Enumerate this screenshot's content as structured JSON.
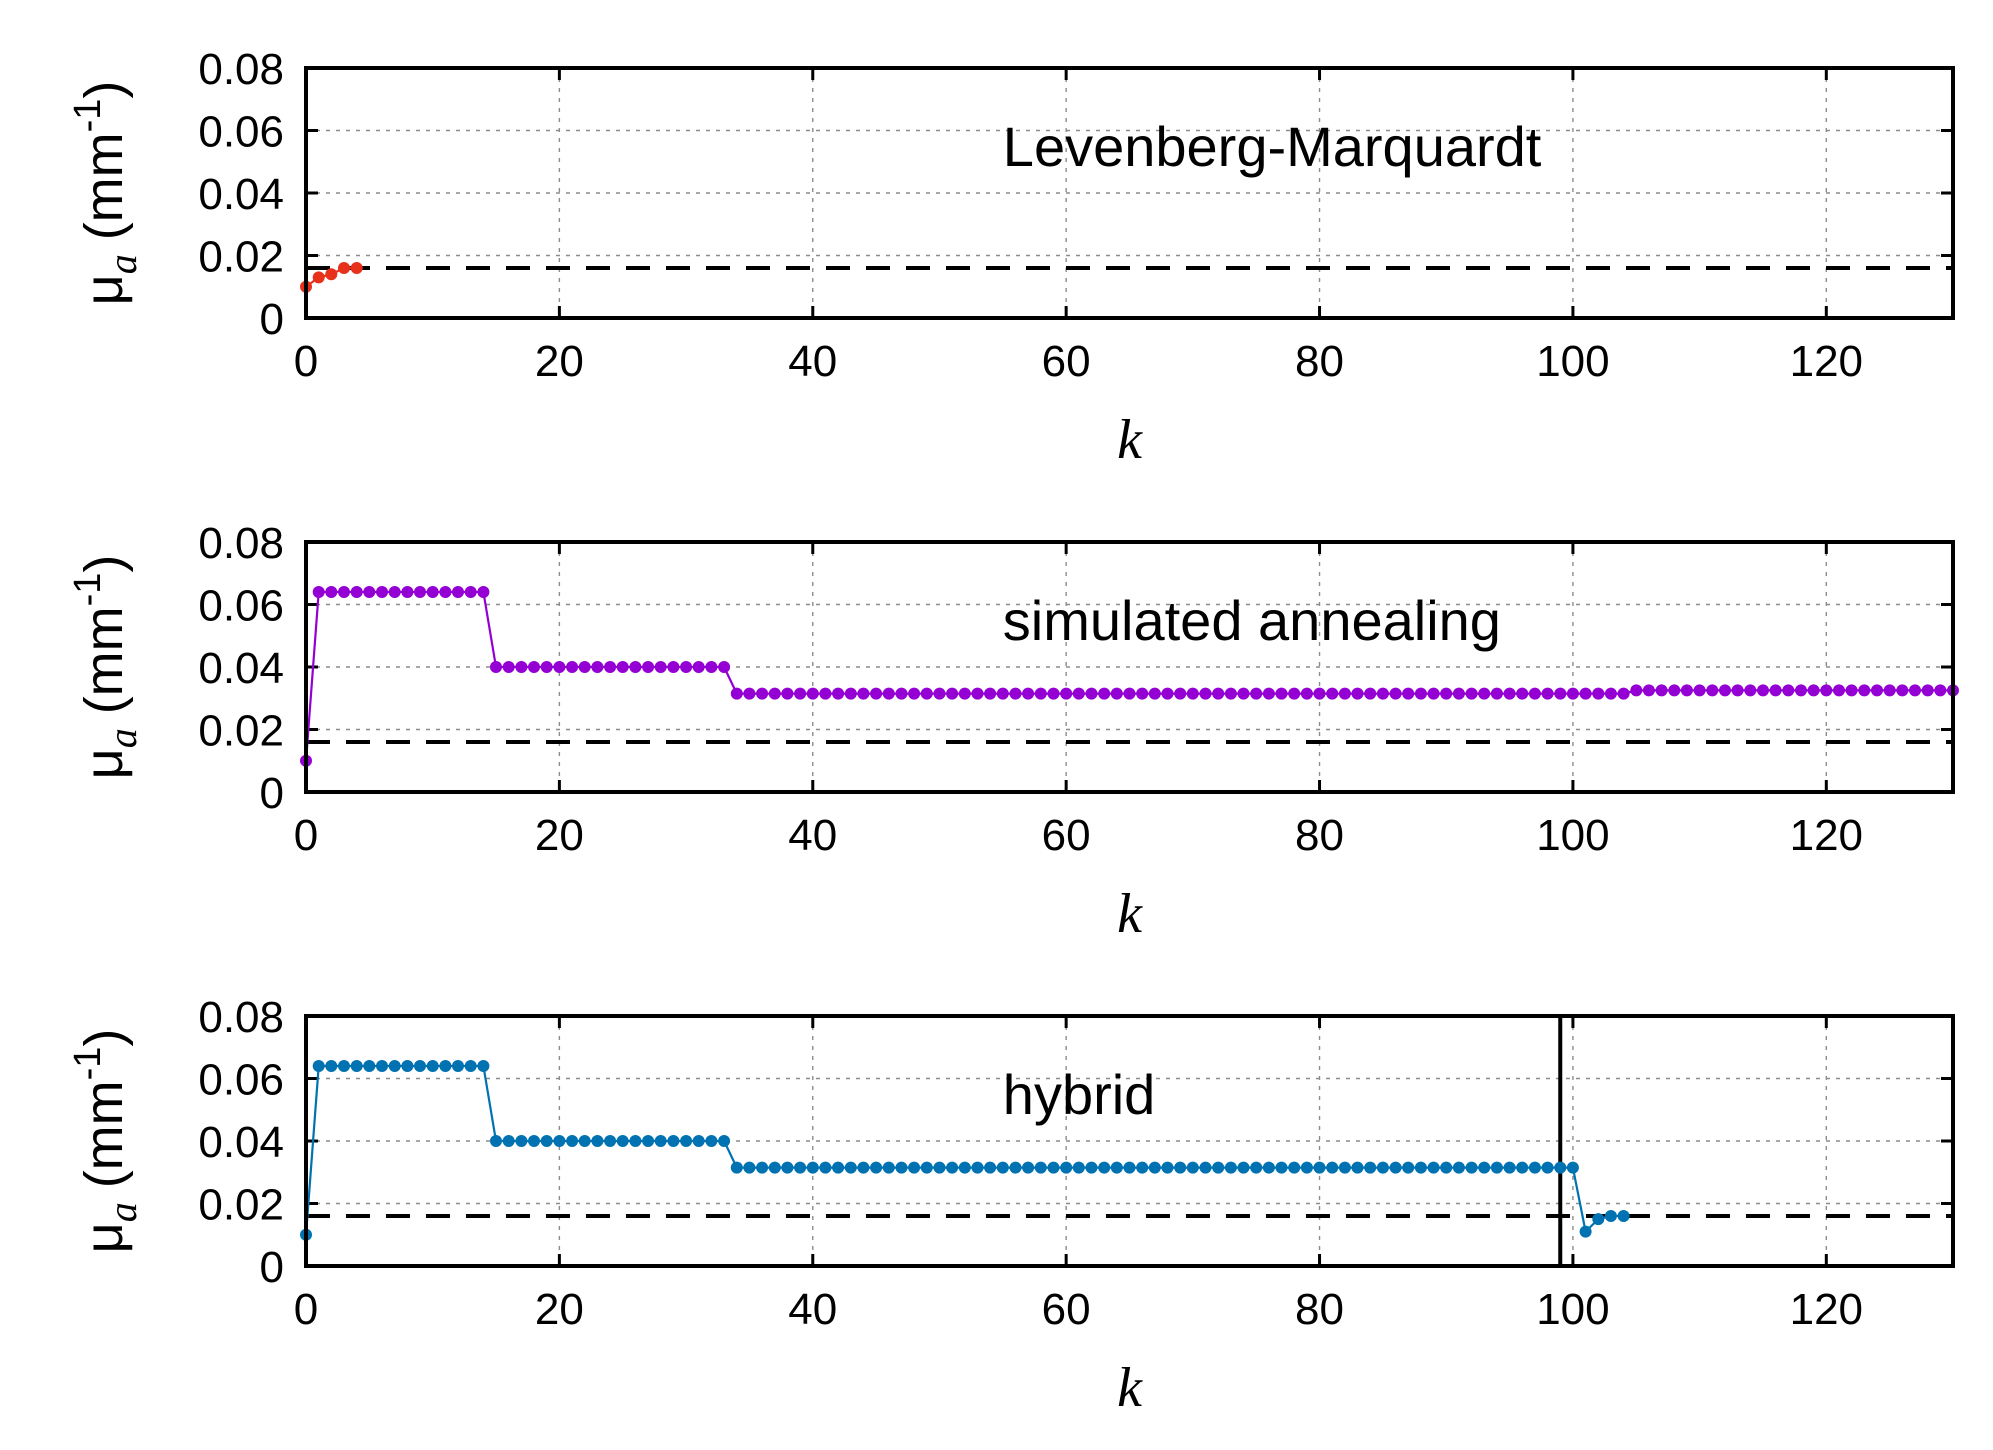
{
  "chart_data": [
    {
      "type": "line",
      "title": "Levenberg-Marquardt",
      "xlabel": "k",
      "ylabel": "μ",
      "ylabel_subscript": "a",
      "ylabel_units_open": "(mm",
      "ylabel_units_exp": "-1",
      "ylabel_units_close": ")",
      "xlim": [
        0,
        130
      ],
      "ylim": [
        0,
        0.08
      ],
      "xticks": [
        0,
        20,
        40,
        60,
        80,
        100,
        120
      ],
      "yticks": [
        0,
        0.02,
        0.04,
        0.06,
        0.08
      ],
      "xtick_labels": [
        "0",
        "20",
        "40",
        "60",
        "80",
        "100",
        "120"
      ],
      "ytick_labels": [
        "0",
        "0.02",
        "0.04",
        "0.06",
        "0.08"
      ],
      "grid": true,
      "reference_y": 0.016,
      "color": "#e8311a",
      "series": [
        {
          "name": "Levenberg-Marquardt",
          "x": [
            0,
            1,
            2,
            3,
            4
          ],
          "y": [
            0.01,
            0.013,
            0.014,
            0.016,
            0.016
          ]
        }
      ]
    },
    {
      "type": "line",
      "title": "simulated annealing",
      "xlabel": "k",
      "ylabel": "μ",
      "ylabel_subscript": "a",
      "ylabel_units_open": "(mm",
      "ylabel_units_exp": "-1",
      "ylabel_units_close": ")",
      "xlim": [
        0,
        130
      ],
      "ylim": [
        0,
        0.08
      ],
      "xticks": [
        0,
        20,
        40,
        60,
        80,
        100,
        120
      ],
      "yticks": [
        0,
        0.02,
        0.04,
        0.06,
        0.08
      ],
      "xtick_labels": [
        "0",
        "20",
        "40",
        "60",
        "80",
        "100",
        "120"
      ],
      "ytick_labels": [
        "0",
        "0.02",
        "0.04",
        "0.06",
        "0.08"
      ],
      "grid": true,
      "reference_y": 0.016,
      "color": "#9400d3",
      "series": [
        {
          "name": "simulated annealing",
          "segments": [
            {
              "from": 0,
              "to": 0,
              "y": 0.01
            },
            {
              "from": 1,
              "to": 14,
              "y": 0.064
            },
            {
              "from": 15,
              "to": 33,
              "y": 0.04
            },
            {
              "from": 34,
              "to": 104,
              "y": 0.0315
            },
            {
              "from": 105,
              "to": 130,
              "y": 0.0325
            }
          ]
        }
      ]
    },
    {
      "type": "line",
      "title": "hybrid",
      "xlabel": "k",
      "ylabel": "μ",
      "ylabel_subscript": "a",
      "ylabel_units_open": "(mm",
      "ylabel_units_exp": "-1",
      "ylabel_units_close": ")",
      "xlim": [
        0,
        130
      ],
      "ylim": [
        0,
        0.08
      ],
      "xticks": [
        0,
        20,
        40,
        60,
        80,
        100,
        120
      ],
      "yticks": [
        0,
        0.02,
        0.04,
        0.06,
        0.08
      ],
      "xtick_labels": [
        "0",
        "20",
        "40",
        "60",
        "80",
        "100",
        "120"
      ],
      "ytick_labels": [
        "0",
        "0.02",
        "0.04",
        "0.06",
        "0.08"
      ],
      "grid": true,
      "reference_y": 0.016,
      "vertical_marker_x": 99,
      "color": "#0072b2",
      "series": [
        {
          "name": "hybrid",
          "segments": [
            {
              "from": 0,
              "to": 0,
              "y": 0.01
            },
            {
              "from": 1,
              "to": 14,
              "y": 0.064
            },
            {
              "from": 15,
              "to": 33,
              "y": 0.04
            },
            {
              "from": 34,
              "to": 100,
              "y": 0.0315
            },
            {
              "from": 101,
              "to": 101,
              "y": 0.011
            },
            {
              "from": 102,
              "to": 102,
              "y": 0.015
            },
            {
              "from": 103,
              "to": 104,
              "y": 0.016
            }
          ]
        }
      ]
    }
  ]
}
